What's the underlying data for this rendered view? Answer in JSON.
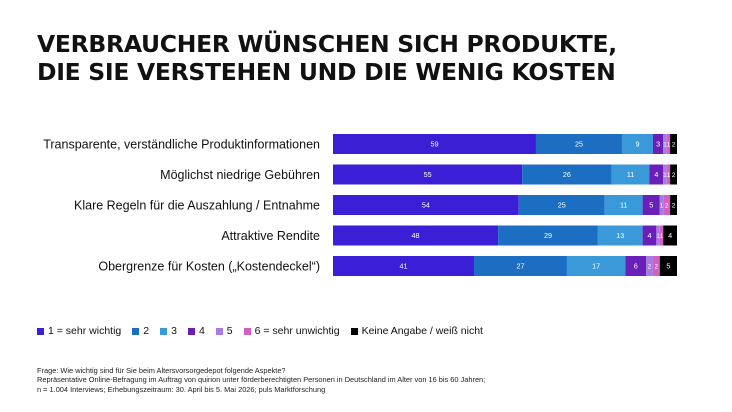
{
  "title": {
    "line1": "VERBRAUCHER WÜNSCHEN SICH PRODUKTE,",
    "line2": "DIE SIE VERSTEHEN UND DIE WENIG KOSTEN"
  },
  "chart_data": {
    "type": "bar",
    "orientation": "horizontal",
    "stacked": true,
    "unit": "%",
    "xlim": [
      0,
      100
    ],
    "categories": [
      "Transparente, verständliche Produktinformationen",
      "Möglichst niedrige Gebühren",
      "Klare Regeln für die Auszahlung / Entnahme",
      "Attraktive Rendite",
      "Obergrenze für Kosten („Kostendeckel“)"
    ],
    "series": [
      {
        "name": "1 = sehr wichtig",
        "color": "#3b1fd6",
        "values": [
          59,
          55,
          54,
          48,
          41
        ]
      },
      {
        "name": "2",
        "color": "#1b6ec2",
        "values": [
          25,
          26,
          25,
          29,
          27
        ]
      },
      {
        "name": "3",
        "color": "#3a9ad9",
        "values": [
          9,
          11,
          11,
          13,
          17
        ]
      },
      {
        "name": "4",
        "color": "#6a1fb8",
        "values": [
          3,
          4,
          5,
          4,
          6
        ]
      },
      {
        "name": "5",
        "color": "#a77be0",
        "values": [
          1,
          1,
          1,
          1,
          2
        ]
      },
      {
        "name": "6 = sehr unwichtig",
        "color": "#d35fc2",
        "values": [
          1,
          1,
          2,
          1,
          2
        ]
      },
      {
        "name": "Keine Angabe / weiß nicht",
        "color": "#000000",
        "values": [
          2,
          2,
          2,
          4,
          5
        ]
      }
    ],
    "legend_position": "bottom",
    "grid": false
  },
  "footnote": {
    "line1": "Frage: Wie wichtig sind für Sie beim Altersvorsorgedepot folgende Aspekte?",
    "line2": "Repräsentative Online-Befragung im Auftrag von quirion unter förderberechtigten Personen in Deutschland im Alter von 16 bis 60 Jahren;",
    "line3": "n = 1.004 Interviews; Erhebungszeitraum: 30. April bis 5. Mai 2026; puls Marktforschung"
  }
}
